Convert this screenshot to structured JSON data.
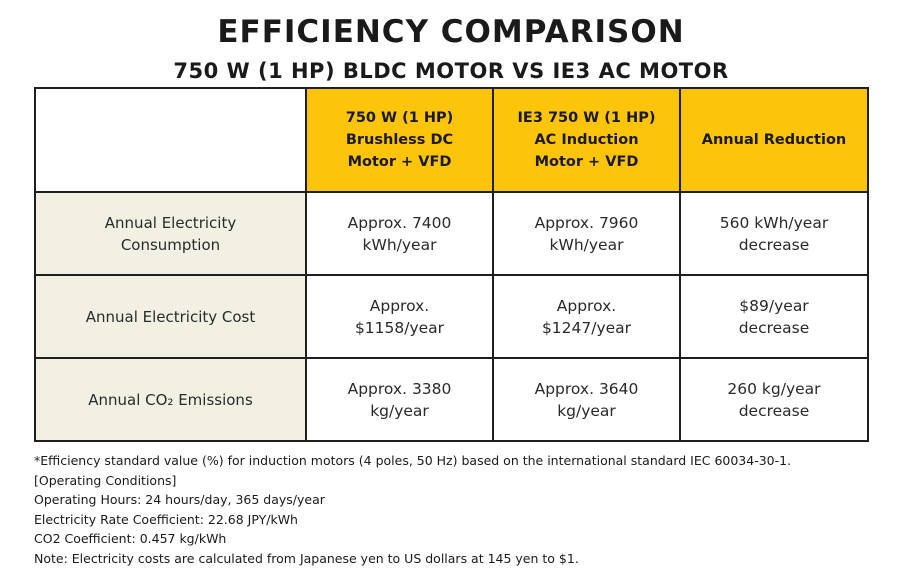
{
  "title": "EFFICIENCY COMPARISON",
  "subtitle": "750 W (1 HP) BLDC MOTOR VS IE3 AC MOTOR",
  "table": {
    "headers": [
      [
        "750 W (1 HP)",
        "Brushless DC",
        "Motor + VFD"
      ],
      [
        "IE3 750 W (1 HP)",
        "AC Induction",
        "Motor + VFD"
      ],
      [
        "Annual Reduction"
      ]
    ],
    "rows": [
      {
        "label": [
          "Annual Electricity",
          "Consumption"
        ],
        "bldc": [
          "Approx. 7400",
          "kWh/year"
        ],
        "ie3": [
          "Approx. 7960",
          "kWh/year"
        ],
        "reduction": [
          "560 kWh/year",
          "decrease"
        ]
      },
      {
        "label": [
          "Annual Electricity Cost"
        ],
        "bldc": [
          "Approx.",
          "$1158/year"
        ],
        "ie3": [
          "Approx.",
          "$1247/year"
        ],
        "reduction": [
          "$89/year",
          "decrease"
        ]
      },
      {
        "label": [
          "Annual CO₂ Emissions"
        ],
        "bldc": [
          "Approx. 3380",
          "kg/year"
        ],
        "ie3": [
          "Approx. 3640",
          "kg/year"
        ],
        "reduction": [
          "260 kg/year",
          "decrease"
        ]
      }
    ]
  },
  "notes": [
    "*Efficiency standard value (%) for induction motors (4 poles, 50 Hz) based on the international standard IEC 60034-30-1.",
    "[Operating Conditions]",
    "Operating Hours: 24 hours/day, 365 days/year",
    "Electricity Rate Coefficient: 22.68 JPY/kWh",
    "CO2 Coefficient: 0.457 kg/kWh",
    "Note: Electricity costs are calculated from Japanese yen to US dollars at 145 yen to $1."
  ],
  "colors": {
    "header_fill": "#fcc40a",
    "label_fill": "#f2f0e2",
    "border": "#1f1f1f"
  }
}
